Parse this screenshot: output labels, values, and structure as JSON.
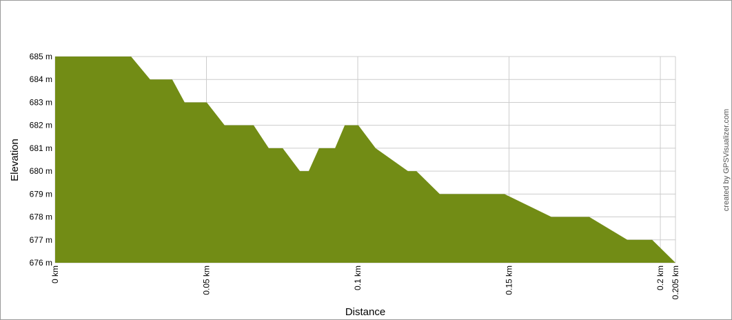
{
  "chart_data": {
    "type": "area",
    "x_label": "Distance",
    "y_label": "Elevation",
    "credit": "created by GPSVisualizer.com",
    "x": [
      0,
      0.0251,
      0.0314,
      0.0387,
      0.0428,
      0.0501,
      0.056,
      0.0656,
      0.0706,
      0.0752,
      0.0809,
      0.0838,
      0.0872,
      0.0925,
      0.0957,
      0.1002,
      0.1059,
      0.1166,
      0.1194,
      0.1271,
      0.1485,
      0.164,
      0.1765,
      0.1891,
      0.1973,
      0.205
    ],
    "values": [
      685,
      685,
      684,
      684,
      683,
      683,
      682,
      682,
      681,
      681,
      680,
      680,
      681,
      681,
      682,
      682,
      681,
      680,
      680,
      679,
      679,
      678,
      678,
      677,
      677,
      676
    ],
    "color": "#728c15",
    "xlim": [
      0,
      0.205
    ],
    "ylim": [
      676,
      685
    ],
    "xticks": [
      {
        "value": 0,
        "label": "0 km"
      },
      {
        "value": 0.05,
        "label": "0.05 km"
      },
      {
        "value": 0.1,
        "label": "0.1 km"
      },
      {
        "value": 0.15,
        "label": "0.15 km"
      },
      {
        "value": 0.2,
        "label": "0.2 km"
      },
      {
        "value": 0.205,
        "label": "0.205 km"
      }
    ],
    "yticks": [
      {
        "value": 676,
        "label": "676 m"
      },
      {
        "value": 677,
        "label": "677 m"
      },
      {
        "value": 678,
        "label": "678 m"
      },
      {
        "value": 679,
        "label": "679 m"
      },
      {
        "value": 680,
        "label": "680 m"
      },
      {
        "value": 681,
        "label": "681 m"
      },
      {
        "value": 682,
        "label": "682 m"
      },
      {
        "value": 683,
        "label": "683 m"
      },
      {
        "value": 684,
        "label": "684 m"
      },
      {
        "value": 685,
        "label": "685 m"
      }
    ],
    "grid": true
  }
}
